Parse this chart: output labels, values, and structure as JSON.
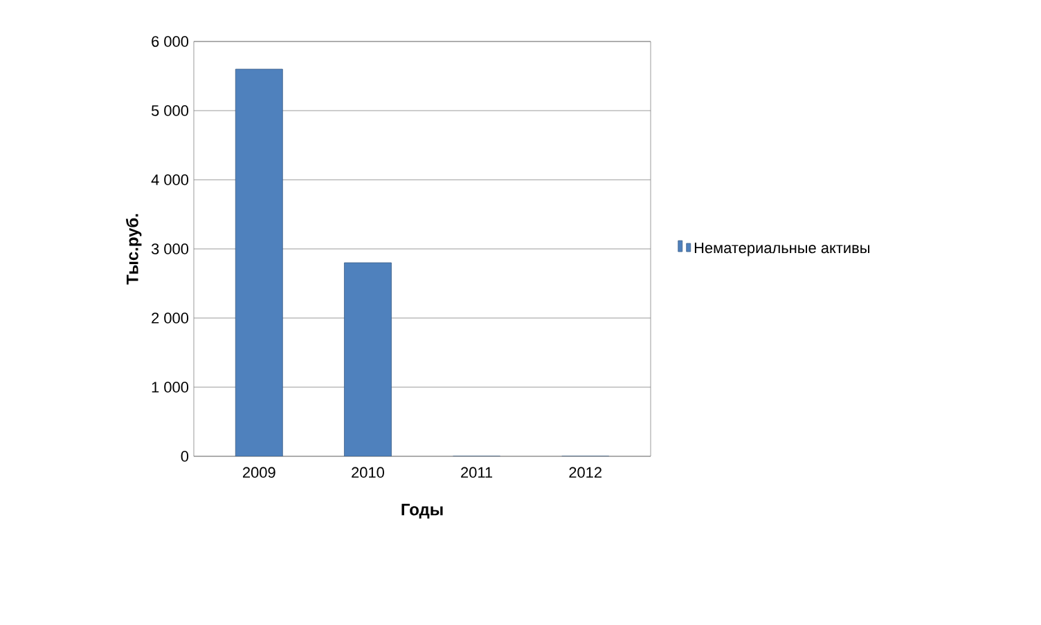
{
  "chart_data": {
    "type": "bar",
    "xlabel": "Годы",
    "ylabel": "Тыс.руб.",
    "categories": [
      "2009",
      "2010",
      "2011",
      "2012"
    ],
    "series": [
      {
        "name": "Нематериальные активы",
        "color": "#4f81bd",
        "values": [
          5600,
          2800,
          0,
          0
        ]
      }
    ],
    "ylim": [
      0,
      6000
    ],
    "yticks": [
      {
        "value": 0,
        "label": "0"
      },
      {
        "value": 1000,
        "label": "1 000"
      },
      {
        "value": 2000,
        "label": "2 000"
      },
      {
        "value": 3000,
        "label": "3 000"
      },
      {
        "value": 4000,
        "label": "4 000"
      },
      {
        "value": 5000,
        "label": "5 000"
      },
      {
        "value": 6000,
        "label": "6 000"
      }
    ],
    "grid": "y",
    "legend": "right"
  }
}
